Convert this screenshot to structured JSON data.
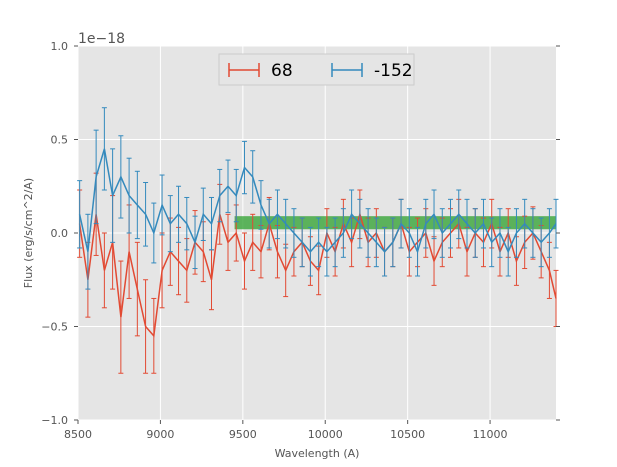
{
  "chart_data": {
    "type": "line",
    "title": "",
    "xlabel": "Wavelength (A)",
    "ylabel": "Flux (erg/s/cm^2/A)",
    "y_offset_label": "1e−18",
    "xlim": [
      8500,
      11400
    ],
    "ylim": [
      -1.0,
      1.0
    ],
    "xticks": [
      8500,
      9000,
      9500,
      10000,
      10500,
      11000
    ],
    "xtick_labels": [
      "8500",
      "9000",
      "9500",
      "10000",
      "10500",
      "11000"
    ],
    "yticks": [
      -1.0,
      -0.5,
      0.0,
      0.5,
      1.0
    ],
    "ytick_labels": [
      "−1.0",
      "−0.5",
      "0.0",
      "0.5",
      "1.0"
    ],
    "grid": true,
    "legend_position": "top-center",
    "band": {
      "x_range": [
        9450,
        11400
      ],
      "y_range": [
        0.02,
        0.09
      ],
      "color": "#2ca02c"
    },
    "series": [
      {
        "name": "68",
        "color": "#E24A33",
        "x": [
          8510,
          8560,
          8610,
          8660,
          8710,
          8760,
          8810,
          8860,
          8910,
          8960,
          9010,
          9060,
          9110,
          9160,
          9210,
          9260,
          9310,
          9360,
          9410,
          9460,
          9510,
          9560,
          9610,
          9660,
          9710,
          9760,
          9810,
          9860,
          9910,
          9960,
          10010,
          10060,
          10110,
          10160,
          10210,
          10260,
          10310,
          10360,
          10410,
          10460,
          10510,
          10560,
          10610,
          10660,
          10710,
          10760,
          10810,
          10860,
          10910,
          10960,
          11010,
          11060,
          11110,
          11160,
          11210,
          11260,
          11310,
          11360,
          11400
        ],
        "y": [
          0.05,
          -0.25,
          0.1,
          -0.2,
          -0.05,
          -0.45,
          -0.1,
          -0.3,
          -0.5,
          -0.55,
          -0.2,
          -0.1,
          -0.15,
          -0.2,
          -0.05,
          -0.1,
          -0.25,
          0.1,
          -0.05,
          0.0,
          -0.15,
          -0.05,
          -0.1,
          0.05,
          -0.1,
          -0.2,
          -0.1,
          -0.05,
          -0.15,
          -0.2,
          0.0,
          -0.1,
          0.05,
          -0.05,
          0.1,
          -0.05,
          0.0,
          -0.1,
          -0.05,
          0.05,
          -0.1,
          -0.05,
          0.0,
          -0.15,
          -0.05,
          0.0,
          0.05,
          -0.1,
          0.0,
          -0.05,
          0.05,
          -0.1,
          0.0,
          -0.15,
          -0.05,
          0.0,
          -0.1,
          -0.2,
          -0.35
        ],
        "yerr": [
          0.18,
          0.2,
          0.22,
          0.2,
          0.25,
          0.3,
          0.25,
          0.25,
          0.25,
          0.2,
          0.2,
          0.18,
          0.18,
          0.17,
          0.17,
          0.16,
          0.16,
          0.16,
          0.15,
          0.15,
          0.15,
          0.15,
          0.14,
          0.14,
          0.14,
          0.14,
          0.13,
          0.13,
          0.13,
          0.13,
          0.13,
          0.13,
          0.13,
          0.13,
          0.13,
          0.13,
          0.13,
          0.13,
          0.13,
          0.13,
          0.13,
          0.13,
          0.13,
          0.13,
          0.13,
          0.13,
          0.13,
          0.13,
          0.13,
          0.13,
          0.13,
          0.13,
          0.13,
          0.13,
          0.14,
          0.14,
          0.14,
          0.15,
          0.15
        ]
      },
      {
        "name": "-152",
        "color": "#348ABD",
        "x": [
          8510,
          8560,
          8610,
          8660,
          8710,
          8760,
          8810,
          8860,
          8910,
          8960,
          9010,
          9060,
          9110,
          9160,
          9210,
          9260,
          9310,
          9360,
          9410,
          9460,
          9510,
          9560,
          9610,
          9660,
          9710,
          9760,
          9810,
          9860,
          9910,
          9960,
          10010,
          10060,
          10110,
          10160,
          10210,
          10260,
          10310,
          10360,
          10410,
          10460,
          10510,
          10560,
          10610,
          10660,
          10710,
          10760,
          10810,
          10860,
          10910,
          10960,
          11010,
          11060,
          11110,
          11160,
          11210,
          11260,
          11310,
          11360,
          11400
        ],
        "y": [
          0.1,
          -0.1,
          0.3,
          0.45,
          0.2,
          0.3,
          0.2,
          0.15,
          0.1,
          0.0,
          0.15,
          0.05,
          0.1,
          0.05,
          -0.05,
          0.1,
          0.05,
          0.2,
          0.25,
          0.2,
          0.35,
          0.3,
          0.15,
          0.05,
          0.1,
          0.05,
          0.0,
          -0.05,
          -0.1,
          -0.05,
          -0.1,
          -0.05,
          0.0,
          0.1,
          0.05,
          0.0,
          -0.05,
          -0.1,
          -0.05,
          0.05,
          0.0,
          -0.1,
          0.05,
          0.1,
          0.0,
          0.05,
          0.1,
          0.05,
          0.0,
          0.05,
          -0.05,
          0.0,
          -0.1,
          0.0,
          0.05,
          0.0,
          -0.05,
          0.0,
          0.05
        ],
        "yerr": [
          0.18,
          0.2,
          0.25,
          0.22,
          0.25,
          0.22,
          0.2,
          0.18,
          0.17,
          0.16,
          0.16,
          0.15,
          0.15,
          0.14,
          0.14,
          0.14,
          0.14,
          0.14,
          0.14,
          0.14,
          0.14,
          0.14,
          0.13,
          0.13,
          0.13,
          0.13,
          0.13,
          0.13,
          0.13,
          0.13,
          0.13,
          0.13,
          0.13,
          0.13,
          0.13,
          0.13,
          0.13,
          0.13,
          0.13,
          0.13,
          0.13,
          0.13,
          0.13,
          0.13,
          0.13,
          0.13,
          0.13,
          0.13,
          0.13,
          0.13,
          0.13,
          0.13,
          0.13,
          0.13,
          0.13,
          0.13,
          0.13,
          0.13,
          0.13
        ]
      }
    ]
  }
}
